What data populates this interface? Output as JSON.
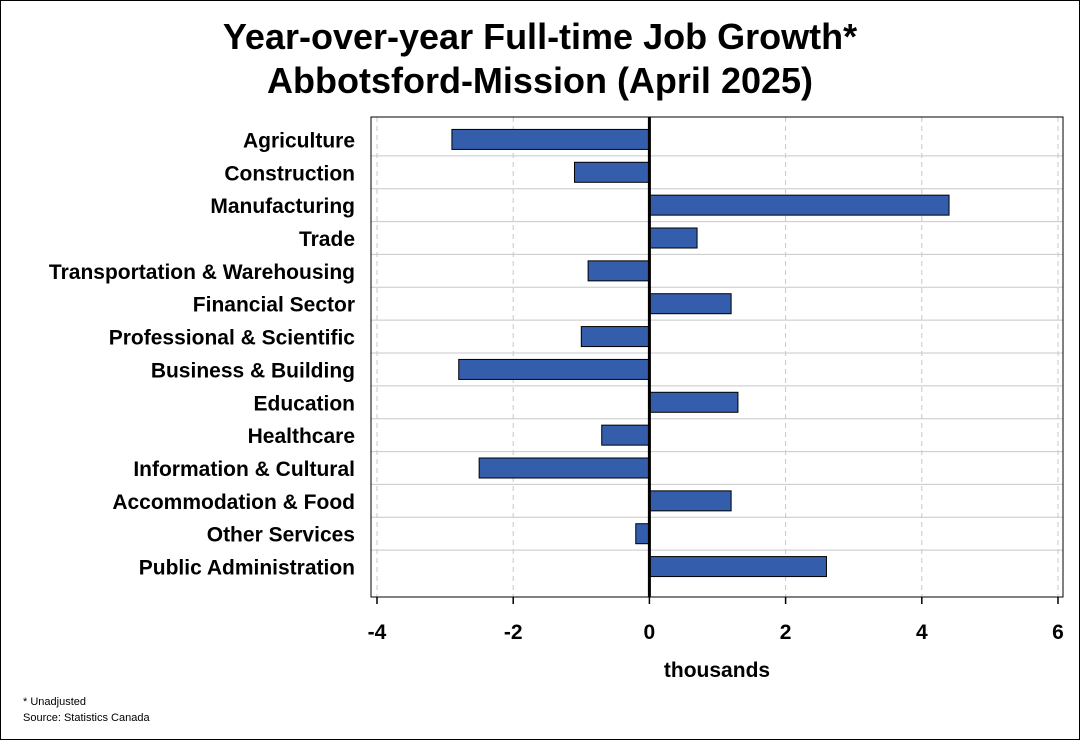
{
  "chart_data": {
    "type": "bar",
    "orientation": "horizontal",
    "title_line1": "Year-over-year Full-time Job Growth*",
    "title_line2": "Abbotsford-Mission (April 2025)",
    "xlabel": "thousands",
    "ylabel": "",
    "xlim": [
      -4,
      6
    ],
    "xticks": [
      -4,
      -2,
      0,
      2,
      4,
      6
    ],
    "grid": "vertical dashed",
    "categories": [
      "Agriculture",
      "Construction",
      "Manufacturing",
      "Trade",
      "Transportation & Warehousing",
      "Financial Sector",
      "Professional & Scientific",
      "Business & Building",
      "Education",
      "Healthcare",
      "Information & Cultural",
      "Accommodation & Food",
      "Other Services",
      "Public Administration"
    ],
    "values": [
      -2.9,
      -1.1,
      4.4,
      0.7,
      -0.9,
      1.2,
      -1.0,
      -2.8,
      1.3,
      -0.7,
      -2.5,
      1.2,
      -0.2,
      2.6
    ],
    "bar_color": "#345EAC",
    "footnote": "* Unadjusted",
    "source": "Source: Statistics Canada"
  }
}
